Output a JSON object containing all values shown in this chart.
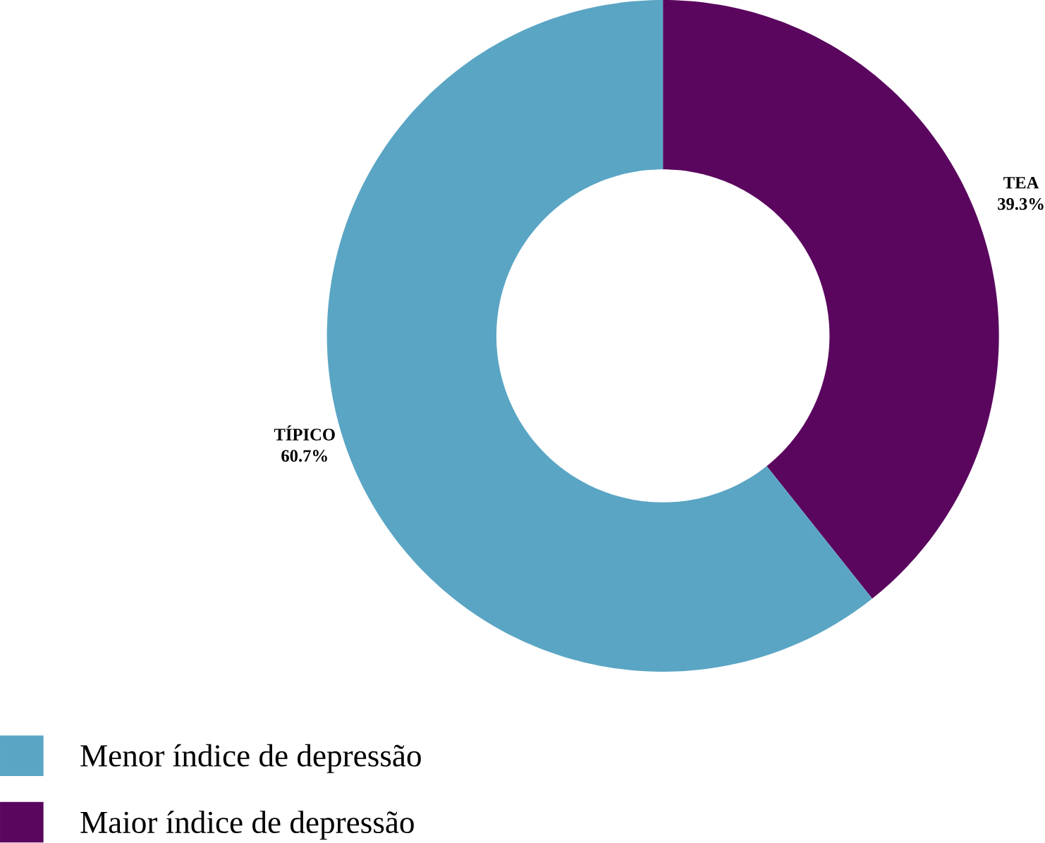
{
  "chart_data": {
    "type": "donut",
    "categories": [
      "TEA",
      "TÍPICO"
    ],
    "values": [
      39.3,
      60.7
    ],
    "colors": [
      "#5a065e",
      "#5aa5c4"
    ],
    "data_labels": true,
    "value_labels": [
      "39.3%",
      "60.7%"
    ],
    "annotations": [
      "Maior índice de depressão",
      "Menor índice de depressão"
    ]
  }
}
